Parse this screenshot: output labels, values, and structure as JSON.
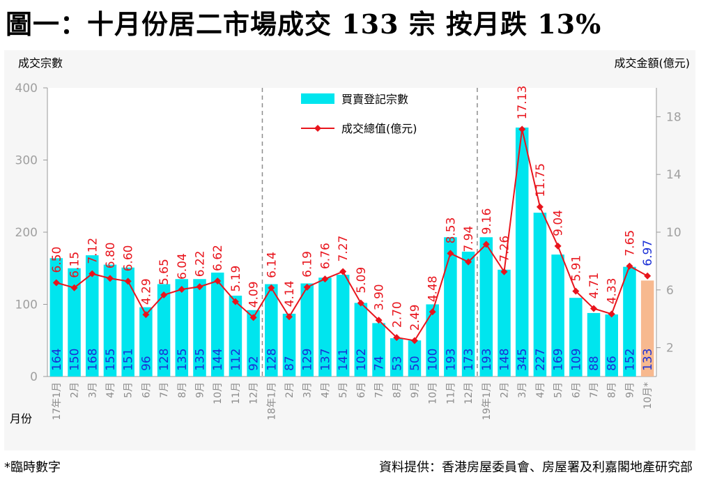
{
  "title": "圖一：十月份居二市場成交 133 宗  按月跌 13%",
  "footnote": "*臨時數字",
  "source": "資料提供：香港房屋委員會、房屋署及利嘉閣地產研究部",
  "chart_data": {
    "type": "bar+line",
    "left_axis_label": "成交宗數",
    "right_axis_label": "成交金額(億元)",
    "x_axis_label": "月份",
    "left_ylim": [
      0,
      400
    ],
    "left_ticks": [
      "0",
      "100",
      "200",
      "300",
      "400"
    ],
    "right_ylim": [
      0,
      20
    ],
    "right_ticks": [
      "2",
      "6",
      "10",
      "14",
      "18"
    ],
    "categories": [
      "17年1月",
      "2月",
      "3月",
      "4月",
      "5月",
      "6月",
      "7月",
      "8月",
      "9月",
      "10月",
      "11月",
      "12月",
      "18年1月",
      "2月",
      "3月",
      "4月",
      "5月",
      "6月",
      "7月",
      "8月",
      "9月",
      "10月",
      "11月",
      "12月",
      "19年1月",
      "2月",
      "3月",
      "4月",
      "5月",
      "6月",
      "7月",
      "8月",
      "9月",
      "10月*"
    ],
    "series": [
      {
        "name": "買賣登記宗數",
        "kind": "bar",
        "color": "#00e5ee",
        "provisional_color": "#f7b98f",
        "values": [
          164,
          150,
          168,
          155,
          151,
          96,
          128,
          135,
          135,
          144,
          112,
          92,
          128,
          87,
          129,
          137,
          141,
          102,
          74,
          53,
          50,
          100,
          193,
          173,
          193,
          148,
          345,
          227,
          169,
          109,
          88,
          86,
          152,
          133
        ],
        "labels": [
          "164",
          "150",
          "168",
          "155",
          "151",
          "96",
          "128",
          "135",
          "135",
          "144",
          "112",
          "92",
          "128",
          "87",
          "129",
          "137",
          "141",
          "102",
          "74",
          "53",
          "50",
          "100",
          "193",
          "173",
          "193",
          "148",
          "345",
          "227",
          "169",
          "109",
          "88",
          "86",
          "152",
          "133"
        ]
      },
      {
        "name": "成交總值(億元)",
        "kind": "line",
        "color": "#e8141c",
        "values": [
          6.5,
          6.15,
          7.12,
          6.8,
          6.6,
          4.29,
          5.65,
          6.04,
          6.22,
          6.62,
          5.19,
          4.09,
          6.14,
          4.14,
          6.19,
          6.76,
          7.27,
          5.09,
          3.9,
          2.7,
          2.49,
          4.48,
          8.53,
          7.94,
          9.16,
          7.26,
          17.13,
          11.75,
          9.04,
          5.91,
          4.71,
          4.33,
          7.65,
          6.97
        ],
        "labels": [
          "6.50",
          "6.15",
          "7.12",
          "6.80",
          "6.60",
          "4.29",
          "5.65",
          "6.04",
          "6.22",
          "6.62",
          "5.19",
          "4.09",
          "6.14",
          "4.14",
          "6.19",
          "6.76",
          "7.27",
          "5.09",
          "3.90",
          "2.70",
          "2.49",
          "4.48",
          "8.53",
          "7.94",
          "9.16",
          "7.26",
          "17.13",
          "11.75",
          "9.04",
          "5.91",
          "4.71",
          "4.33",
          "7.65",
          "6.97"
        ]
      }
    ],
    "year_dividers_before_index": [
      12,
      24
    ],
    "provisional_index": 33
  }
}
